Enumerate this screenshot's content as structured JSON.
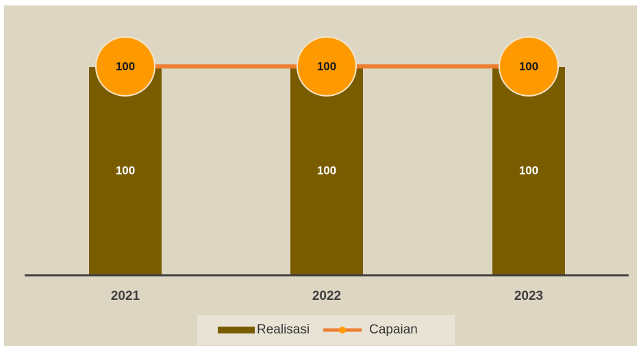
{
  "chart_data": {
    "type": "bar",
    "categories": [
      "2021",
      "2022",
      "2023"
    ],
    "series": [
      {
        "name": "Realisasi",
        "type": "bar",
        "color": "#7a5c00",
        "values": [
          100,
          100,
          100
        ]
      },
      {
        "name": "Capaian",
        "type": "line",
        "color": "#ed7d31",
        "marker_color": "#ff9900",
        "values": [
          100,
          100,
          100
        ]
      }
    ],
    "legend": "bottom"
  }
}
